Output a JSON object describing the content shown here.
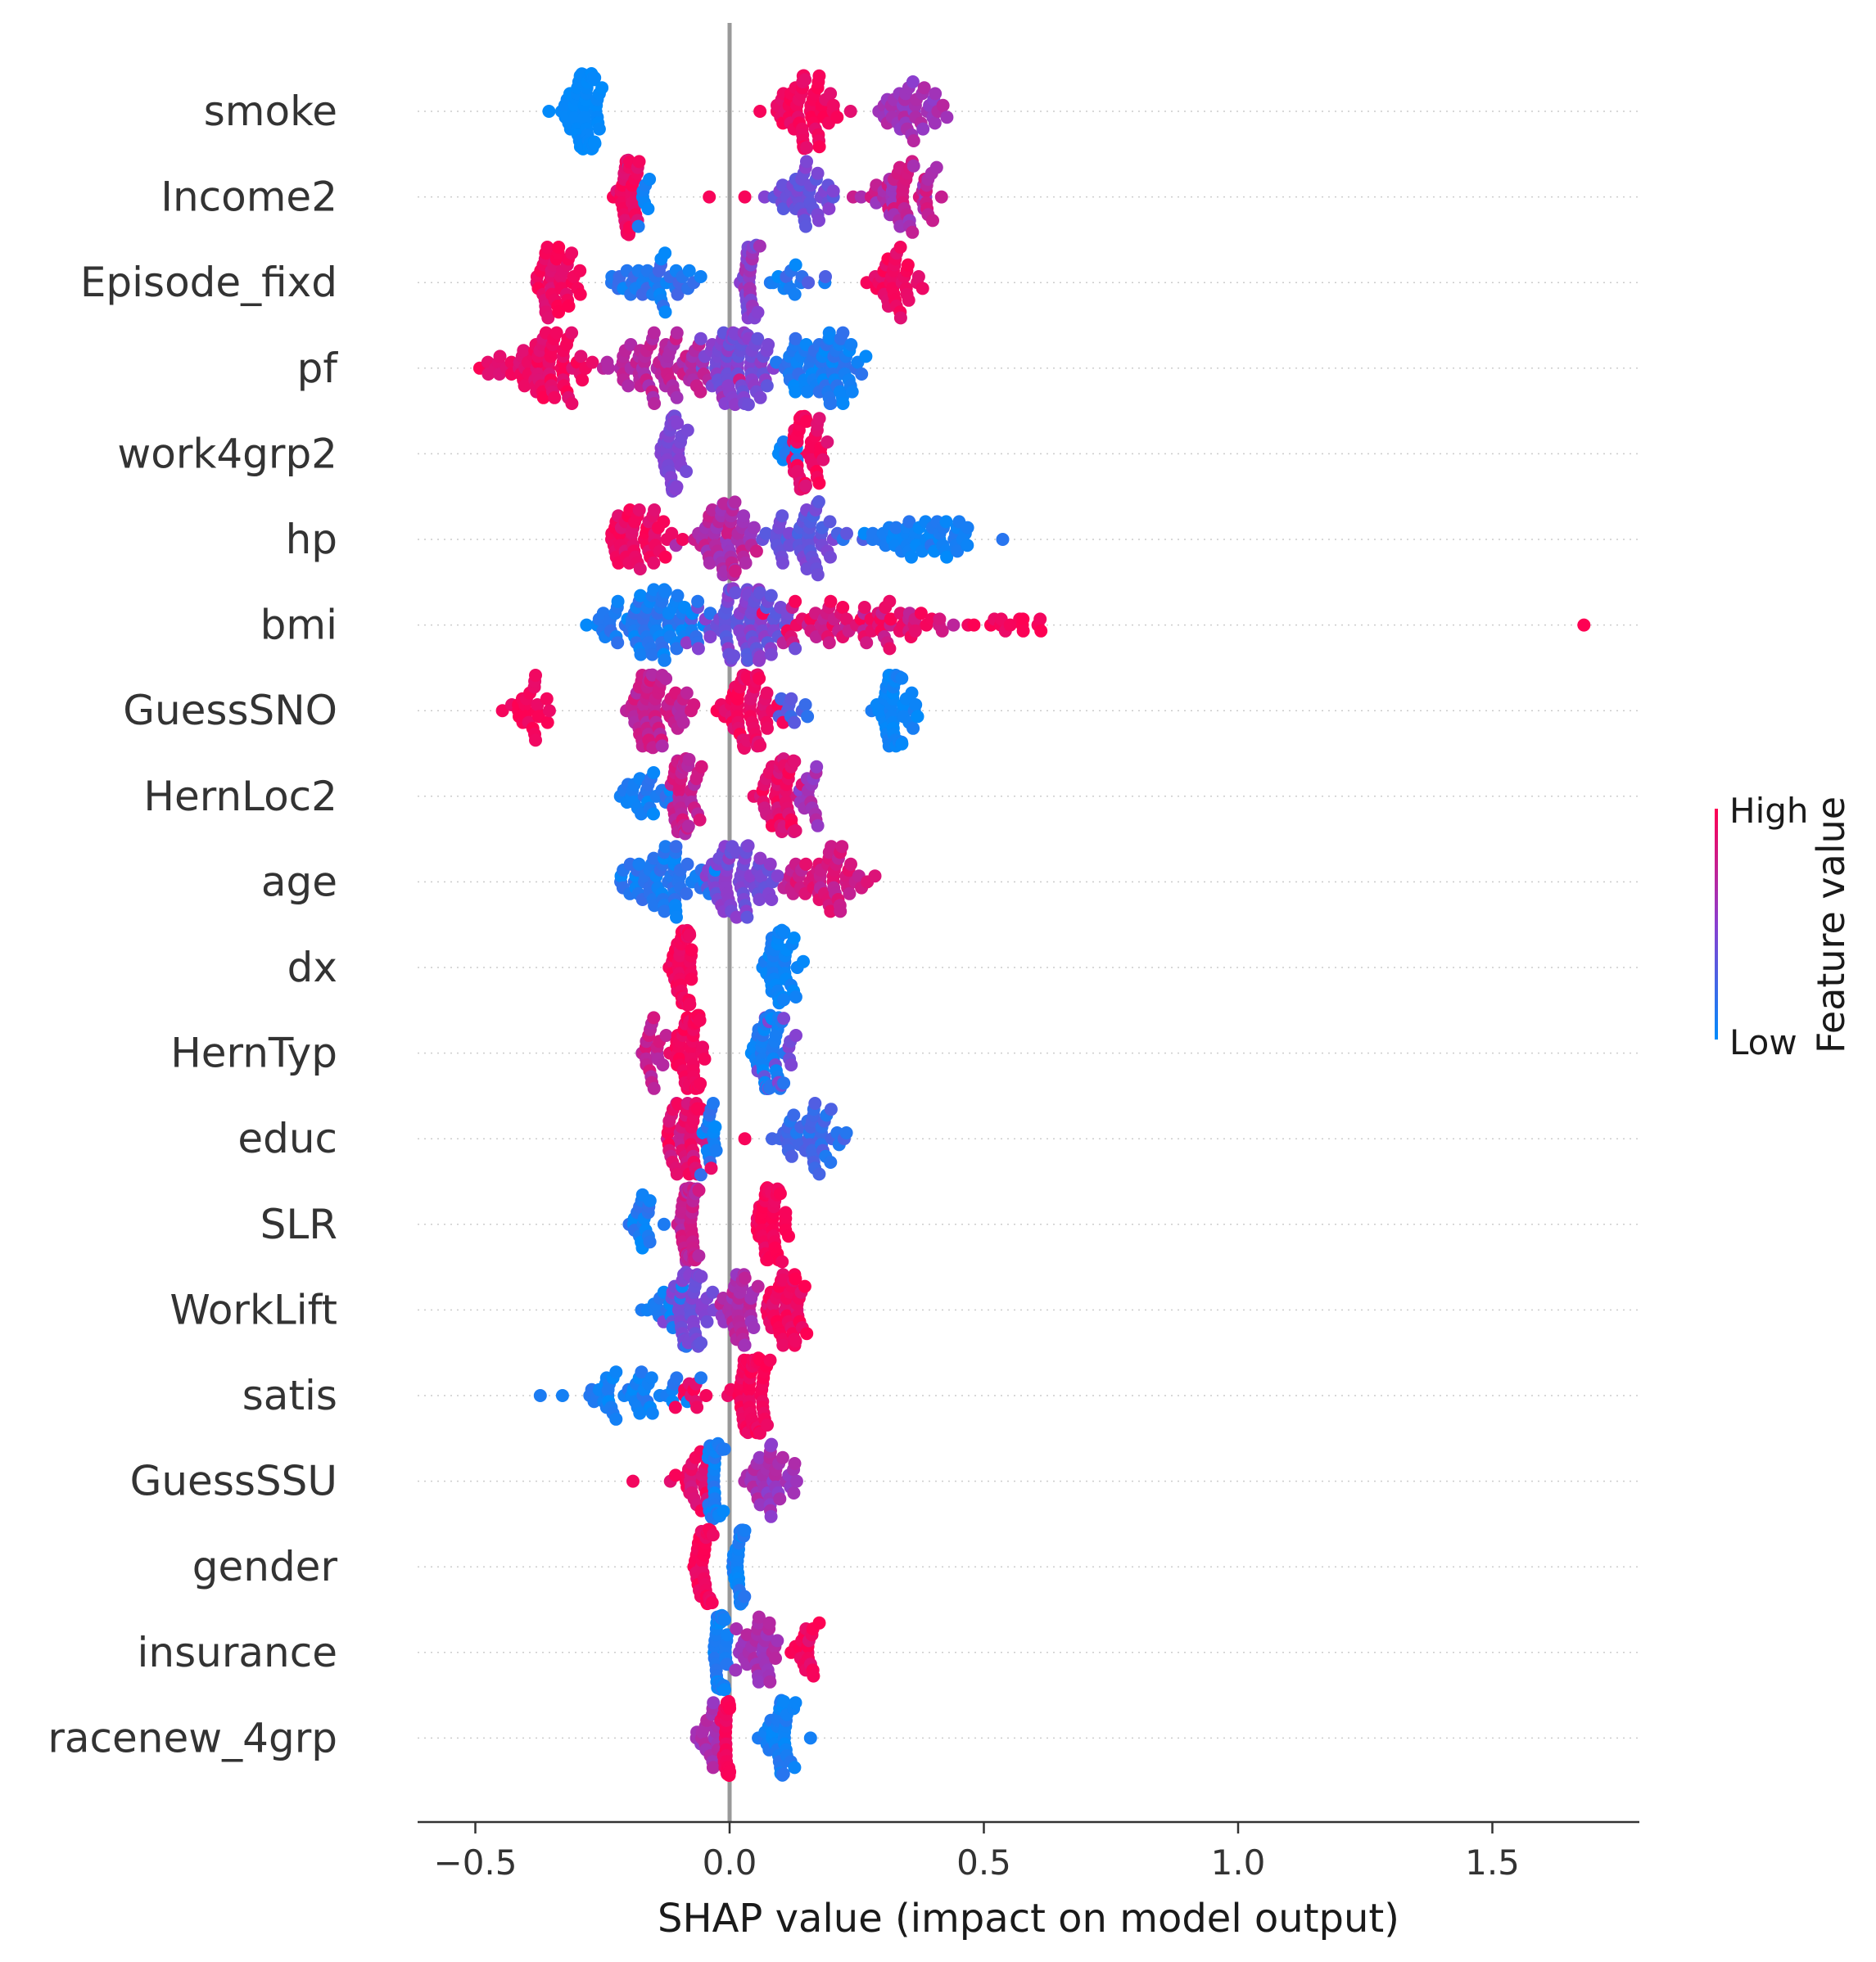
{
  "chart_data": {
    "type": "scatter",
    "subtype": "shap-beeswarm-summary",
    "xlabel": "SHAP value (impact on model output)",
    "ylabel": "",
    "xlim": [
      -0.62,
      1.78
    ],
    "xticks": [
      -0.5,
      0.0,
      0.5,
      1.0,
      1.5
    ],
    "xtick_labels": [
      "−0.5",
      "0.0",
      "0.5",
      "1.0",
      "1.5"
    ],
    "zero_line": 0.0,
    "grid": false,
    "colorbar": {
      "title": "Feature value",
      "high_label": "High",
      "low_label": "Low",
      "high_color": "#ff0052",
      "mid_color": "#8a3fd0",
      "low_color": "#008bfb",
      "position": "right"
    },
    "features": [
      {
        "name": "smoke",
        "min": -0.36,
        "max": 0.45,
        "clusters": [
          {
            "c": -0.29,
            "w": 0.045,
            "n": 60,
            "low": 0.97,
            "high": 1.0
          },
          {
            "c": 0.15,
            "w": 0.07,
            "n": 55,
            "low": 0.0,
            "high": 0.12
          },
          {
            "c": 0.35,
            "w": 0.06,
            "n": 40,
            "low": 0.3,
            "high": 0.5
          }
        ]
      },
      {
        "name": "Income2",
        "min": -0.24,
        "max": 0.46,
        "clusters": [
          {
            "c": -0.2,
            "w": 0.02,
            "n": 40,
            "low": 0.0,
            "high": 0.15
          },
          {
            "c": -0.17,
            "w": 0.03,
            "n": 8,
            "low": 0.85,
            "high": 1.0
          },
          {
            "c": -0.04,
            "w": 0.01,
            "n": 1,
            "low": 0.0,
            "high": 0.05
          },
          {
            "c": 0.03,
            "w": 0.005,
            "n": 1,
            "low": 0.0,
            "high": 0.05
          },
          {
            "c": 0.15,
            "w": 0.05,
            "n": 40,
            "low": 0.5,
            "high": 0.7
          },
          {
            "c": 0.34,
            "w": 0.07,
            "n": 55,
            "low": 0.15,
            "high": 0.45
          }
        ]
      },
      {
        "name": "Episode_fixd",
        "min": -0.41,
        "max": 0.4,
        "clusters": [
          {
            "c": -0.34,
            "w": 0.05,
            "n": 40,
            "low": 0.0,
            "high": 0.15
          },
          {
            "c": -0.15,
            "w": 0.08,
            "n": 40,
            "low": 0.75,
            "high": 1.0
          },
          {
            "c": 0.04,
            "w": 0.015,
            "n": 30,
            "low": 0.35,
            "high": 0.6
          },
          {
            "c": 0.13,
            "w": 0.05,
            "n": 15,
            "low": 0.7,
            "high": 1.0
          },
          {
            "c": 0.32,
            "w": 0.05,
            "n": 35,
            "low": 0.0,
            "high": 0.15
          }
        ]
      },
      {
        "name": "pf",
        "min": -0.5,
        "max": 0.3,
        "clusters": [
          {
            "c": -0.38,
            "w": 0.1,
            "n": 70,
            "low": 0.0,
            "high": 0.15
          },
          {
            "c": -0.14,
            "w": 0.1,
            "n": 70,
            "low": 0.2,
            "high": 0.4
          },
          {
            "c": 0.02,
            "w": 0.06,
            "n": 70,
            "low": 0.45,
            "high": 0.65
          },
          {
            "c": 0.18,
            "w": 0.08,
            "n": 70,
            "low": 0.8,
            "high": 1.0
          }
        ]
      },
      {
        "name": "work4grp2",
        "min": -0.15,
        "max": 0.24,
        "clusters": [
          {
            "c": -0.11,
            "w": 0.02,
            "n": 45,
            "low": 0.5,
            "high": 0.6
          },
          {
            "c": 0.15,
            "w": 0.035,
            "n": 40,
            "low": 0.0,
            "high": 0.15
          },
          {
            "c": 0.11,
            "w": 0.02,
            "n": 8,
            "low": 0.85,
            "high": 1.0
          }
        ]
      },
      {
        "name": "hp",
        "min": -0.26,
        "max": 0.59,
        "clusters": [
          {
            "c": -0.17,
            "w": 0.07,
            "n": 50,
            "low": 0.0,
            "high": 0.15
          },
          {
            "c": -0.01,
            "w": 0.07,
            "n": 60,
            "low": 0.2,
            "high": 0.45
          },
          {
            "c": 0.15,
            "w": 0.08,
            "n": 50,
            "low": 0.5,
            "high": 0.75
          },
          {
            "c": 0.38,
            "w": 0.11,
            "n": 50,
            "low": 0.85,
            "high": 1.0
          }
        ]
      },
      {
        "name": "bmi",
        "min": -0.3,
        "max": 1.68,
        "clusters": [
          {
            "c": -0.14,
            "w": 0.1,
            "n": 80,
            "low": 0.8,
            "high": 1.0
          },
          {
            "c": 0.03,
            "w": 0.08,
            "n": 80,
            "low": 0.45,
            "high": 0.7
          },
          {
            "c": 0.25,
            "w": 0.15,
            "n": 70,
            "low": 0.0,
            "high": 0.3
          },
          {
            "c": 0.55,
            "w": 0.07,
            "n": 15,
            "low": 0.0,
            "high": 0.1
          },
          {
            "c": 1.68,
            "w": 0.001,
            "n": 1,
            "low": 0.0,
            "high": 0.03
          }
        ]
      },
      {
        "name": "GuessSNO",
        "min": -0.45,
        "max": 0.4,
        "clusters": [
          {
            "c": -0.38,
            "w": 0.04,
            "n": 25,
            "low": 0.0,
            "high": 0.1
          },
          {
            "c": -0.14,
            "w": 0.06,
            "n": 60,
            "low": 0.15,
            "high": 0.35
          },
          {
            "c": 0.04,
            "w": 0.05,
            "n": 60,
            "low": 0.0,
            "high": 0.15
          },
          {
            "c": 0.12,
            "w": 0.03,
            "n": 10,
            "low": 0.6,
            "high": 0.85
          },
          {
            "c": 0.32,
            "w": 0.05,
            "n": 45,
            "low": 0.9,
            "high": 1.0
          }
        ]
      },
      {
        "name": "HernLoc2",
        "min": -0.24,
        "max": 0.19,
        "clusters": [
          {
            "c": -0.17,
            "w": 0.05,
            "n": 25,
            "low": 0.8,
            "high": 1.0
          },
          {
            "c": -0.09,
            "w": 0.025,
            "n": 45,
            "low": 0.15,
            "high": 0.35
          },
          {
            "c": 0.1,
            "w": 0.04,
            "n": 45,
            "low": 0.0,
            "high": 0.2
          },
          {
            "c": 0.16,
            "w": 0.03,
            "n": 15,
            "low": 0.3,
            "high": 0.5
          }
        ]
      },
      {
        "name": "age",
        "min": -0.24,
        "max": 0.32,
        "clusters": [
          {
            "c": -0.13,
            "w": 0.08,
            "n": 60,
            "low": 0.8,
            "high": 1.0
          },
          {
            "c": 0.02,
            "w": 0.07,
            "n": 60,
            "low": 0.45,
            "high": 0.65
          },
          {
            "c": 0.18,
            "w": 0.09,
            "n": 55,
            "low": 0.1,
            "high": 0.3
          }
        ]
      },
      {
        "name": "dx",
        "min": -0.13,
        "max": 0.16,
        "clusters": [
          {
            "c": -0.09,
            "w": 0.02,
            "n": 50,
            "low": 0.0,
            "high": 0.1
          },
          {
            "c": 0.1,
            "w": 0.03,
            "n": 45,
            "low": 0.9,
            "high": 1.0
          }
        ]
      },
      {
        "name": "HernTyp",
        "min": -0.2,
        "max": 0.14,
        "clusters": [
          {
            "c": -0.15,
            "w": 0.03,
            "n": 20,
            "low": 0.15,
            "high": 0.35
          },
          {
            "c": -0.08,
            "w": 0.03,
            "n": 50,
            "low": 0.0,
            "high": 0.1
          },
          {
            "c": 0.08,
            "w": 0.03,
            "n": 45,
            "low": 0.85,
            "high": 1.0
          },
          {
            "c": 0.1,
            "w": 0.03,
            "n": 15,
            "low": 0.5,
            "high": 0.65
          }
        ]
      },
      {
        "name": "educ",
        "min": -0.15,
        "max": 0.26,
        "clusters": [
          {
            "c": -0.09,
            "w": 0.04,
            "n": 45,
            "low": 0.0,
            "high": 0.25
          },
          {
            "c": -0.04,
            "w": 0.015,
            "n": 15,
            "low": 0.8,
            "high": 1.0
          },
          {
            "c": 0.03,
            "w": 0.005,
            "n": 1,
            "low": 0.0,
            "high": 0.05
          },
          {
            "c": 0.16,
            "w": 0.06,
            "n": 45,
            "low": 0.7,
            "high": 0.9
          }
        ]
      },
      {
        "name": "SLR",
        "min": -0.21,
        "max": 0.13,
        "clusters": [
          {
            "c": -0.17,
            "w": 0.03,
            "n": 20,
            "low": 0.8,
            "high": 1.0
          },
          {
            "c": -0.08,
            "w": 0.025,
            "n": 50,
            "low": 0.15,
            "high": 0.35
          },
          {
            "c": 0.08,
            "w": 0.03,
            "n": 50,
            "low": 0.0,
            "high": 0.1
          }
        ]
      },
      {
        "name": "WorkLift",
        "min": -0.21,
        "max": 0.17,
        "clusters": [
          {
            "c": -0.12,
            "w": 0.05,
            "n": 15,
            "low": 0.85,
            "high": 1.0
          },
          {
            "c": -0.08,
            "w": 0.04,
            "n": 50,
            "low": 0.5,
            "high": 0.65
          },
          {
            "c": 0.02,
            "w": 0.03,
            "n": 40,
            "low": 0.25,
            "high": 0.45
          },
          {
            "c": 0.11,
            "w": 0.04,
            "n": 45,
            "low": 0.0,
            "high": 0.15
          }
        ]
      },
      {
        "name": "satis",
        "min": -0.38,
        "max": 0.11,
        "clusters": [
          {
            "c": -0.2,
            "w": 0.12,
            "n": 45,
            "low": 0.85,
            "high": 1.0
          },
          {
            "c": -0.07,
            "w": 0.04,
            "n": 10,
            "low": 0.0,
            "high": 0.15
          },
          {
            "c": 0.04,
            "w": 0.035,
            "n": 60,
            "low": 0.0,
            "high": 0.1
          }
        ]
      },
      {
        "name": "GuessSSU",
        "min": -0.19,
        "max": 0.15,
        "clusters": [
          {
            "c": -0.19,
            "w": 0.002,
            "n": 1,
            "low": 0.0,
            "high": 0.05
          },
          {
            "c": -0.07,
            "w": 0.04,
            "n": 25,
            "low": 0.0,
            "high": 0.2
          },
          {
            "c": -0.03,
            "w": 0.012,
            "n": 40,
            "low": 0.85,
            "high": 1.0
          },
          {
            "c": 0.08,
            "w": 0.05,
            "n": 40,
            "low": 0.3,
            "high": 0.5
          }
        ]
      },
      {
        "name": "gender",
        "min": -0.09,
        "max": 0.05,
        "clusters": [
          {
            "c": -0.05,
            "w": 0.02,
            "n": 40,
            "low": 0.0,
            "high": 0.1
          },
          {
            "c": 0.02,
            "w": 0.012,
            "n": 35,
            "low": 0.85,
            "high": 1.0
          }
        ]
      },
      {
        "name": "insurance",
        "min": -0.06,
        "max": 0.19,
        "clusters": [
          {
            "c": -0.02,
            "w": 0.01,
            "n": 45,
            "low": 0.85,
            "high": 1.0
          },
          {
            "c": 0.06,
            "w": 0.04,
            "n": 35,
            "low": 0.3,
            "high": 0.45
          },
          {
            "c": 0.15,
            "w": 0.03,
            "n": 20,
            "low": 0.0,
            "high": 0.15
          }
        ]
      },
      {
        "name": "racenew_4grp",
        "min": -0.07,
        "max": 0.16,
        "clusters": [
          {
            "c": -0.04,
            "w": 0.02,
            "n": 20,
            "low": 0.3,
            "high": 0.45
          },
          {
            "c": -0.005,
            "w": 0.008,
            "n": 40,
            "low": 0.0,
            "high": 0.1
          },
          {
            "c": 0.1,
            "w": 0.04,
            "n": 40,
            "low": 0.85,
            "high": 1.0
          }
        ]
      }
    ]
  }
}
